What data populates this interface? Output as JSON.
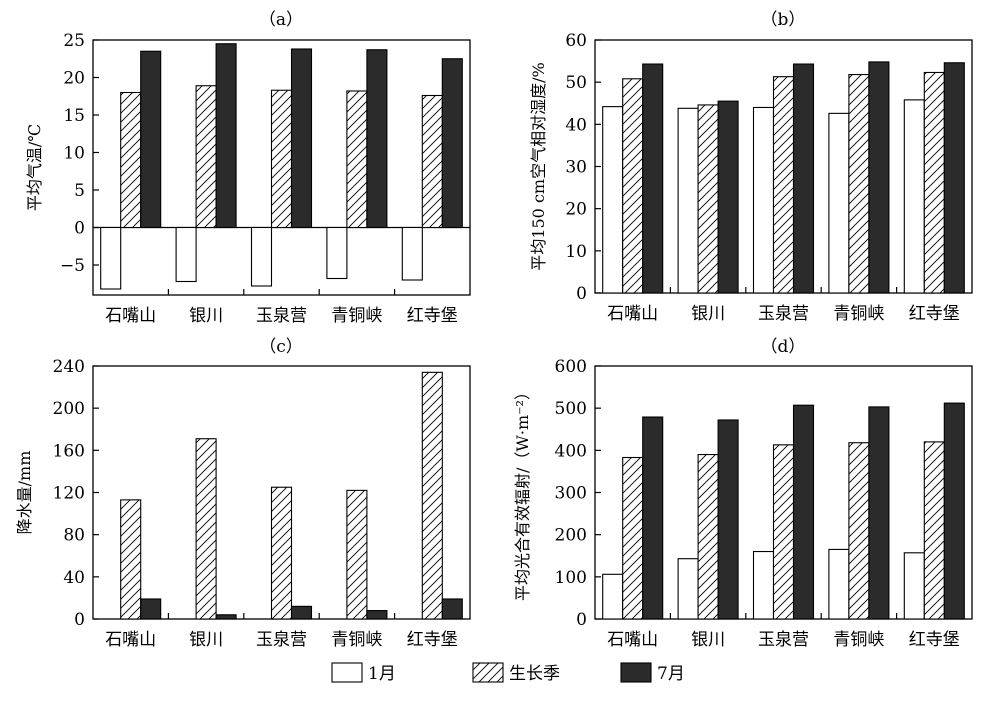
{
  "legend": {
    "items": [
      {
        "label": "1月",
        "style": "empty"
      },
      {
        "label": "生长季",
        "style": "hatched"
      },
      {
        "label": "7月",
        "style": "solid"
      }
    ]
  },
  "colors": {
    "solid": "#2b2b2b",
    "outline": "#000000",
    "background": "#ffffff"
  },
  "chart_data": [
    {
      "panel": "（a）",
      "type": "bar",
      "categories": [
        "石嘴山",
        "银川",
        "玉泉营",
        "青铜峡",
        "红寺堡"
      ],
      "ylabel": "平均气温/℃",
      "ylim": [
        -9,
        25
      ],
      "yticks": [
        -5,
        0,
        5,
        10,
        15,
        20,
        25
      ],
      "zero_baseline": true,
      "series": [
        {
          "name": "1月",
          "values": [
            -8.2,
            -7.2,
            -7.8,
            -6.8,
            -7.0
          ]
        },
        {
          "name": "生长季",
          "values": [
            18.0,
            18.9,
            18.3,
            18.2,
            17.6
          ]
        },
        {
          "name": "7月",
          "values": [
            23.5,
            24.5,
            23.8,
            23.7,
            22.5
          ]
        }
      ]
    },
    {
      "panel": "（b）",
      "type": "bar",
      "categories": [
        "石嘴山",
        "银川",
        "玉泉营",
        "青铜峡",
        "红寺堡"
      ],
      "ylabel": "平均150 cm空气相对湿度/%",
      "ylim": [
        0,
        60
      ],
      "yticks": [
        0,
        10,
        20,
        30,
        40,
        50,
        60
      ],
      "zero_baseline": false,
      "series": [
        {
          "name": "1月",
          "values": [
            44.2,
            43.8,
            44.0,
            42.6,
            45.8
          ]
        },
        {
          "name": "生长季",
          "values": [
            50.8,
            44.6,
            51.3,
            51.8,
            52.3
          ]
        },
        {
          "name": "7月",
          "values": [
            54.3,
            45.5,
            54.3,
            54.8,
            54.6
          ]
        }
      ]
    },
    {
      "panel": "（c）",
      "type": "bar",
      "categories": [
        "石嘴山",
        "银川",
        "玉泉营",
        "青铜峡",
        "红寺堡"
      ],
      "ylabel": "降水量/mm",
      "ylim": [
        0,
        240
      ],
      "yticks": [
        0,
        40,
        80,
        120,
        160,
        200,
        240
      ],
      "zero_baseline": false,
      "series": [
        {
          "name": "1月",
          "values": [
            0,
            0,
            0,
            0,
            0
          ]
        },
        {
          "name": "生长季",
          "values": [
            113,
            171,
            125,
            122,
            234
          ]
        },
        {
          "name": "7月",
          "values": [
            19,
            4,
            12,
            8,
            19
          ]
        }
      ]
    },
    {
      "panel": "（d）",
      "type": "bar",
      "categories": [
        "石嘴山",
        "银川",
        "玉泉营",
        "青铜峡",
        "红寺堡"
      ],
      "ylabel": "平均光合有效辐射/（W·m⁻²）",
      "ylim": [
        0,
        600
      ],
      "yticks": [
        0,
        100,
        200,
        300,
        400,
        500,
        600
      ],
      "zero_baseline": false,
      "series": [
        {
          "name": "1月",
          "values": [
            106,
            143,
            160,
            165,
            157
          ]
        },
        {
          "name": "生长季",
          "values": [
            383,
            390,
            413,
            418,
            420
          ]
        },
        {
          "name": "7月",
          "values": [
            479,
            472,
            507,
            503,
            512
          ]
        }
      ]
    }
  ]
}
